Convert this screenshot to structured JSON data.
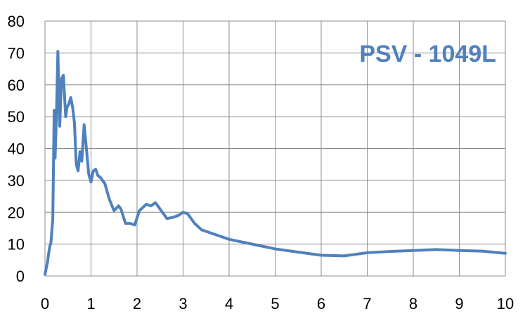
{
  "chart_data": {
    "type": "line",
    "title": "PSV - 1049L",
    "xlabel": "",
    "ylabel": "",
    "xlim": [
      0,
      10
    ],
    "ylim": [
      0,
      80
    ],
    "x_ticks": [
      "0",
      "1",
      "2",
      "3",
      "4",
      "5",
      "6",
      "7",
      "8",
      "9",
      "10"
    ],
    "y_ticks": [
      "0",
      "10",
      "20",
      "30",
      "40",
      "50",
      "60",
      "70",
      "80"
    ],
    "grid": true,
    "series_color": "#4f81bd",
    "title_color": "#4f81bd",
    "series": [
      {
        "points": [
          [
            0.0,
            0.5
          ],
          [
            0.05,
            4
          ],
          [
            0.1,
            9
          ],
          [
            0.13,
            10.5
          ],
          [
            0.17,
            18
          ],
          [
            0.2,
            52
          ],
          [
            0.22,
            37
          ],
          [
            0.25,
            51
          ],
          [
            0.28,
            70.5
          ],
          [
            0.32,
            47
          ],
          [
            0.36,
            62
          ],
          [
            0.4,
            63
          ],
          [
            0.45,
            50
          ],
          [
            0.48,
            53
          ],
          [
            0.52,
            54
          ],
          [
            0.56,
            56
          ],
          [
            0.6,
            53
          ],
          [
            0.64,
            48
          ],
          [
            0.68,
            35
          ],
          [
            0.72,
            33
          ],
          [
            0.76,
            39
          ],
          [
            0.8,
            36
          ],
          [
            0.85,
            47.5
          ],
          [
            0.9,
            40
          ],
          [
            0.95,
            32
          ],
          [
            1.0,
            29.5
          ],
          [
            1.05,
            33
          ],
          [
            1.1,
            33.5
          ],
          [
            1.15,
            31.5
          ],
          [
            1.2,
            31
          ],
          [
            1.3,
            29
          ],
          [
            1.4,
            24
          ],
          [
            1.5,
            20.5
          ],
          [
            1.6,
            22
          ],
          [
            1.65,
            21
          ],
          [
            1.75,
            16.5
          ],
          [
            1.85,
            16.5
          ],
          [
            1.95,
            16
          ],
          [
            2.05,
            20.5
          ],
          [
            2.2,
            22.5
          ],
          [
            2.3,
            22
          ],
          [
            2.4,
            23
          ],
          [
            2.5,
            21
          ],
          [
            2.65,
            18
          ],
          [
            2.8,
            18.5
          ],
          [
            2.9,
            19
          ],
          [
            3.0,
            20
          ],
          [
            3.1,
            19.5
          ],
          [
            3.25,
            16.5
          ],
          [
            3.4,
            14.5
          ],
          [
            3.6,
            13.5
          ],
          [
            3.8,
            12.5
          ],
          [
            4.0,
            11.5
          ],
          [
            4.5,
            10
          ],
          [
            5.0,
            8.5
          ],
          [
            5.5,
            7.5
          ],
          [
            6.0,
            6.5
          ],
          [
            6.5,
            6.3
          ],
          [
            7.0,
            7.3
          ],
          [
            7.5,
            7.7
          ],
          [
            8.0,
            8.0
          ],
          [
            8.5,
            8.3
          ],
          [
            9.0,
            8.0
          ],
          [
            9.5,
            7.8
          ],
          [
            10.0,
            7.1
          ]
        ]
      }
    ]
  }
}
